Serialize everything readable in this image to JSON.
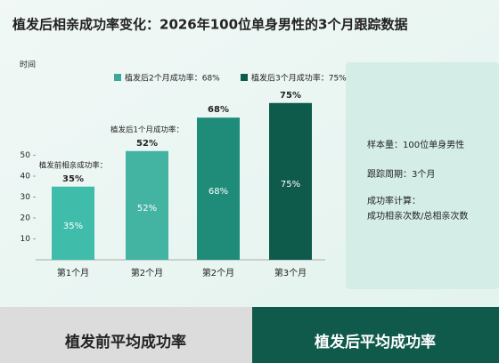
{
  "chart_data": {
    "type": "bar",
    "title": "植发后相亲成功率变化：2026年100位单身男性的3个月跟踪数据",
    "y_label": "时间",
    "categories": [
      "第1个月",
      "第2个月",
      "第2个月",
      "第3个月"
    ],
    "values": [
      35,
      52,
      68,
      75
    ],
    "value_labels": [
      "35%",
      "52%",
      "68%",
      "75%"
    ],
    "colors": [
      "#3fbcaa",
      "#43b3a2",
      "#1e8c79",
      "#0e5a4b"
    ],
    "bar_annotations": [
      "植发前相亲成功率：",
      "植发后1个月成功率：",
      null,
      null
    ],
    "legend": [
      {
        "label": "植发后2个月成功率：68%",
        "color": "#3aa99a"
      },
      {
        "label": "植发后3个月成功率：75%",
        "color": "#0e5a4b"
      }
    ],
    "ylim": [
      0,
      80
    ],
    "yticks": [
      10,
      20,
      30,
      40,
      50
    ]
  },
  "info_panel": [
    "样本量：100位单身男性",
    "跟踪周期：3个月",
    "成功率计算：",
    "成功相亲次数/总相亲次数"
  ],
  "footer": [
    "植发前平均成功率",
    "植发后平均成功率"
  ]
}
